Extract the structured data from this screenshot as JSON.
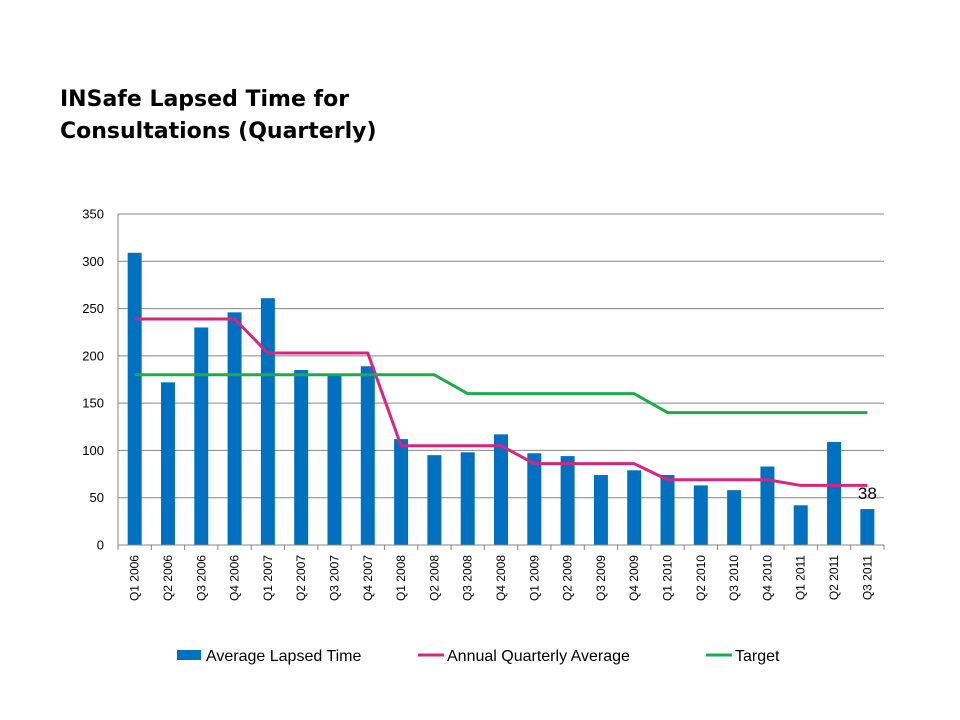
{
  "chart_data": {
    "type": "bar",
    "title": "INSafe Lapsed Time for Consultations (Quarterly)",
    "categories": [
      "Q1 2006",
      "Q2 2006",
      "Q3 2006",
      "Q4 2006",
      "Q1 2007",
      "Q2 2007",
      "Q3 2007",
      "Q4 2007",
      "Q1 2008",
      "Q2 2008",
      "Q3 2008",
      "Q4 2008",
      "Q1 2009",
      "Q2 2009",
      "Q3 2009",
      "Q4 2009",
      "Q1 2010",
      "Q2 2010",
      "Q3 2010",
      "Q4 2010",
      "Q1 2011",
      "Q2 2011",
      "Q3 2011"
    ],
    "ylim": [
      0,
      350
    ],
    "yticks": [
      0,
      50,
      100,
      150,
      200,
      250,
      300,
      350
    ],
    "grid": true,
    "legend_position": "bottom",
    "series": [
      {
        "name": "Average Lapsed Time",
        "type": "bar",
        "color": "#0070C0",
        "values": [
          309,
          172,
          230,
          246,
          261,
          185,
          181,
          189,
          112,
          95,
          98,
          117,
          97,
          94,
          74,
          79,
          74,
          63,
          58,
          83,
          42,
          109,
          38
        ]
      },
      {
        "name": "Annual Quarterly Average",
        "type": "line",
        "color": "#D6267F",
        "values": [
          239,
          239,
          239,
          239,
          203,
          203,
          203,
          203,
          105,
          105,
          105,
          105,
          86,
          86,
          86,
          86,
          69,
          69,
          69,
          69,
          63,
          63,
          63
        ]
      },
      {
        "name": "Target",
        "type": "line",
        "color": "#1EAB4B",
        "values": [
          180,
          180,
          180,
          180,
          180,
          180,
          180,
          180,
          180,
          180,
          160,
          160,
          160,
          160,
          160,
          160,
          140,
          140,
          140,
          140,
          140,
          140,
          140
        ]
      }
    ],
    "data_labels": [
      {
        "series": "Average Lapsed Time",
        "category": "Q3 2011",
        "text": "38"
      }
    ]
  }
}
